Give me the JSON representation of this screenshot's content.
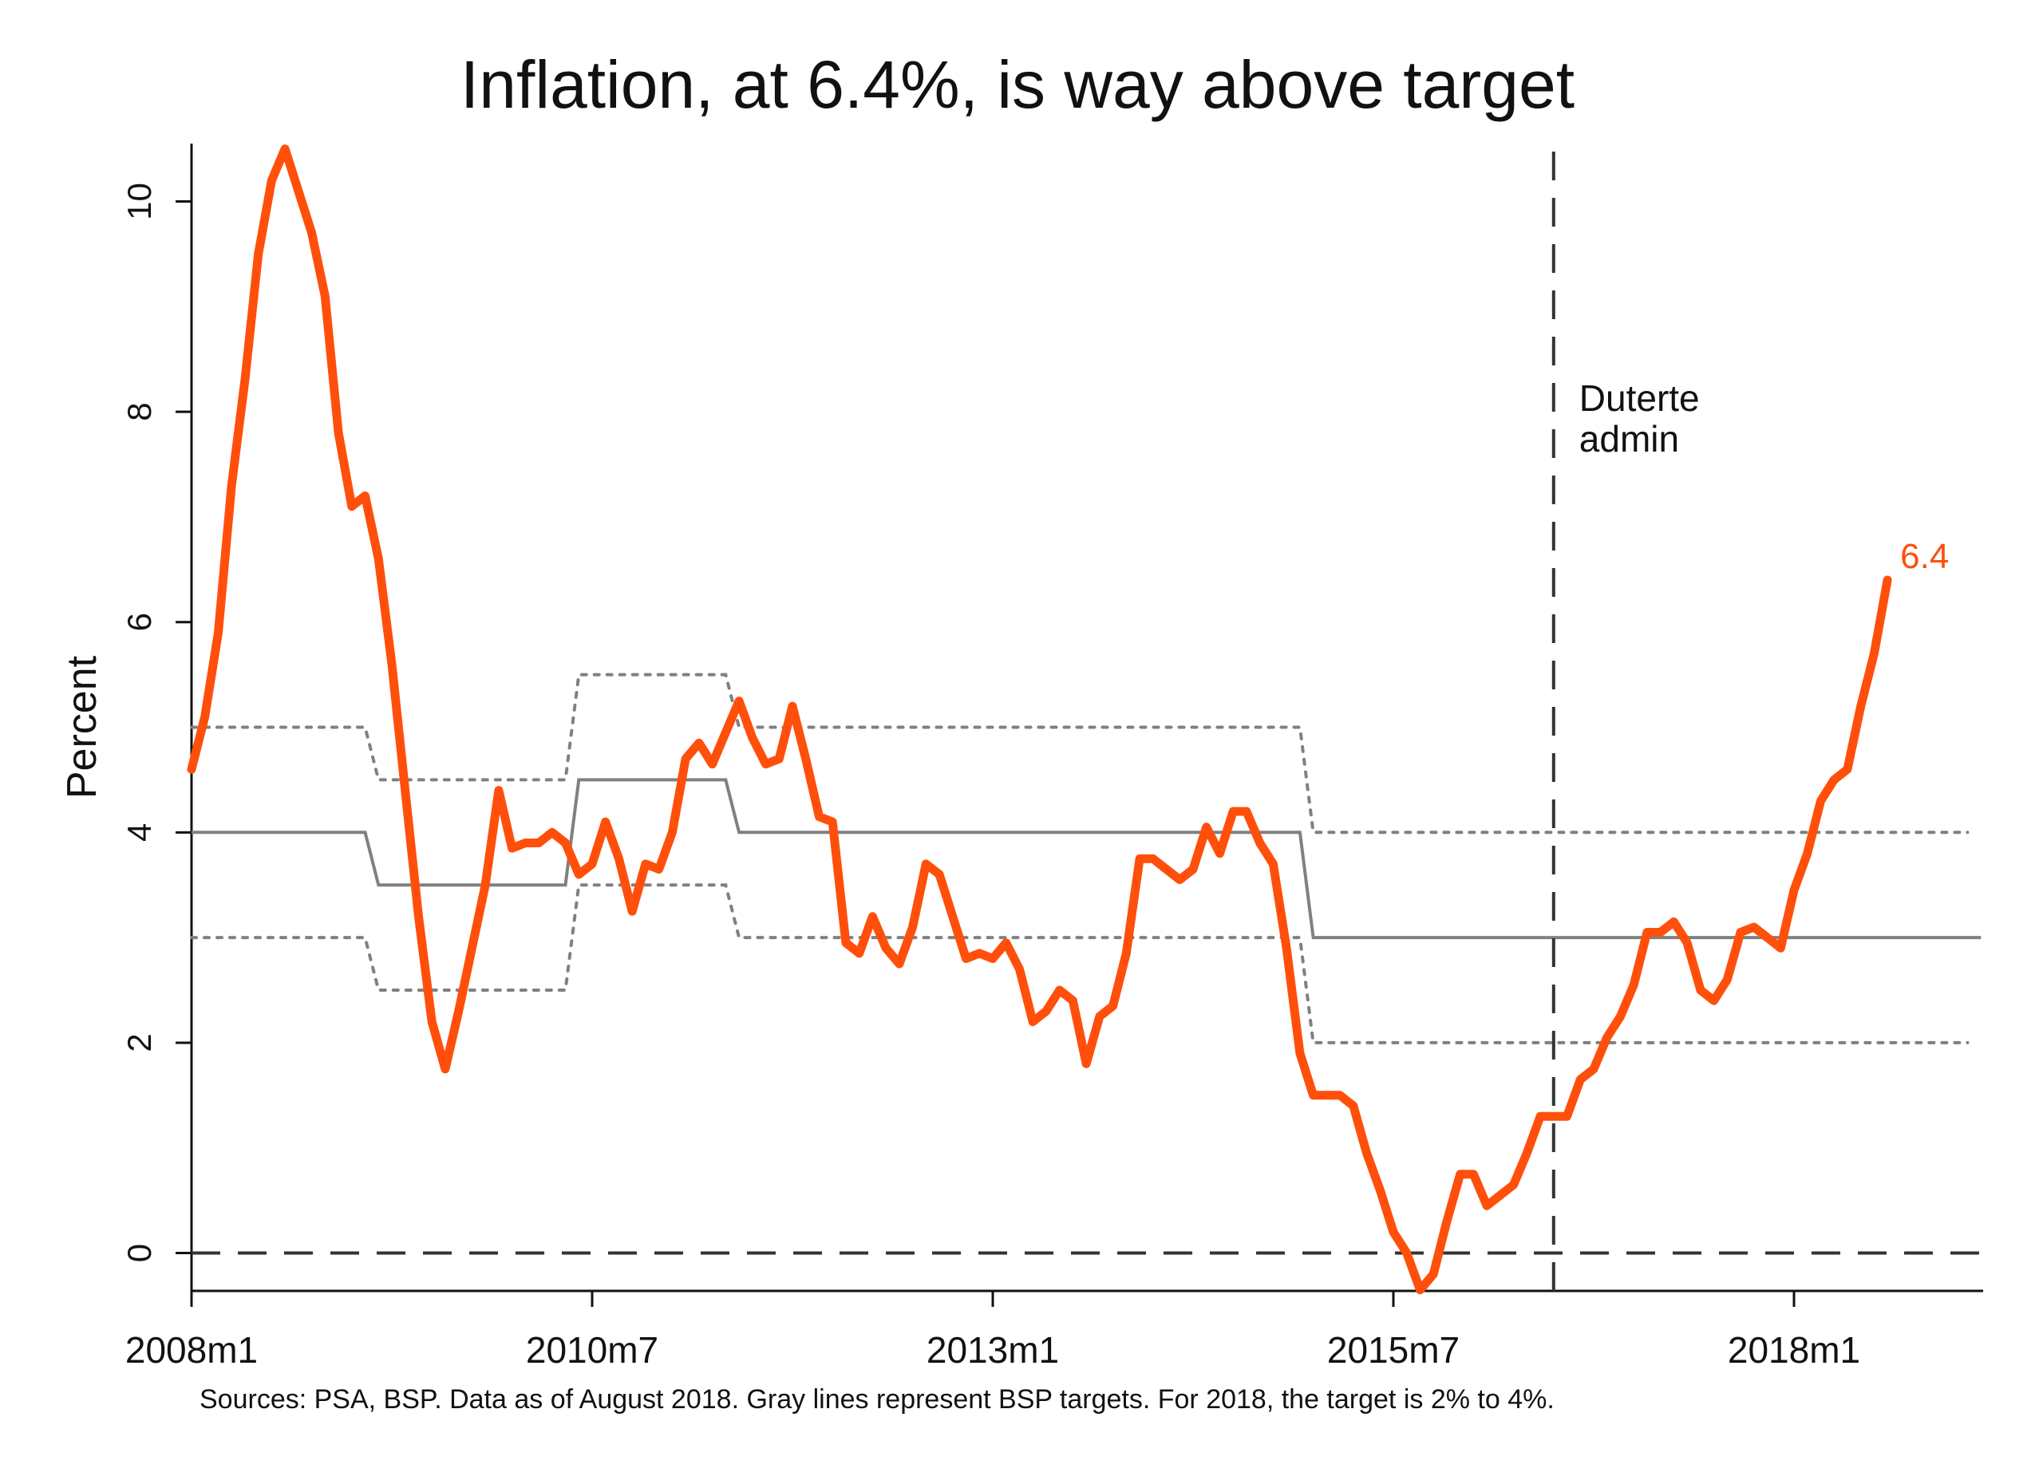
{
  "chart_data": {
    "type": "line",
    "title": "Inflation, at 6.4%, is way above target",
    "ylabel": "Percent",
    "xlabel": "",
    "ylim": [
      -0.36,
      10.55
    ],
    "xlim": [
      "2008m1",
      "2019m3"
    ],
    "x_ticks": [
      "2008m1",
      "2010m7",
      "2013m1",
      "2015m7",
      "2018m1"
    ],
    "y_ticks": [
      0,
      2,
      4,
      6,
      8,
      10
    ],
    "grid": false,
    "legend": "none",
    "annotations": [
      {
        "text": "Duterte",
        "x": "2016m7"
      },
      {
        "text": "admin",
        "x": "2016m7"
      },
      {
        "text": "6.4",
        "x": "2018m8"
      }
    ],
    "reference_lines": [
      {
        "kind": "horizontal-dashed",
        "y": 0
      },
      {
        "kind": "vertical-dashed",
        "x": "2016m7"
      }
    ],
    "series": [
      {
        "role": "inflation",
        "color": "#ff4f0b",
        "style": "solid",
        "start": "2008m1",
        "values": [
          4.6,
          5.1,
          5.9,
          7.3,
          8.3,
          9.5,
          10.2,
          10.5,
          10.1,
          9.7,
          9.1,
          7.8,
          7.1,
          7.2,
          6.6,
          5.6,
          4.4,
          3.2,
          2.2,
          1.75,
          2.3,
          2.9,
          3.5,
          4.4,
          3.85,
          3.9,
          3.9,
          4.0,
          3.9,
          3.6,
          3.7,
          4.1,
          3.75,
          3.25,
          3.7,
          3.65,
          4.0,
          4.7,
          4.85,
          4.65,
          4.95,
          5.25,
          4.9,
          4.65,
          4.7,
          5.2,
          4.7,
          4.15,
          4.1,
          2.95,
          2.85,
          3.2,
          2.9,
          2.75,
          3.1,
          3.7,
          3.6,
          3.2,
          2.8,
          2.85,
          2.8,
          2.95,
          2.7,
          2.2,
          2.3,
          2.5,
          2.4,
          1.8,
          2.25,
          2.35,
          2.85,
          3.75,
          3.75,
          3.65,
          3.55,
          3.65,
          4.05,
          3.8,
          4.2,
          4.2,
          3.9,
          3.7,
          2.9,
          1.9,
          1.5,
          1.5,
          1.5,
          1.4,
          0.95,
          0.6,
          0.2,
          0.0,
          -0.35,
          -0.2,
          0.3,
          0.75,
          0.75,
          0.45,
          0.55,
          0.65,
          0.95,
          1.3,
          1.3,
          1.3,
          1.65,
          1.75,
          2.05,
          2.25,
          2.55,
          3.05,
          3.05,
          3.15,
          2.95,
          2.5,
          2.4,
          2.6,
          3.05,
          3.1,
          3.0,
          2.9,
          3.45,
          3.8,
          4.3,
          4.5,
          4.6,
          5.2,
          5.7,
          6.4
        ]
      },
      {
        "role": "target",
        "color": "#808080",
        "style": "solid",
        "points": [
          [
            "2008m1",
            4
          ],
          [
            "2009m2",
            4
          ],
          [
            "2009m3",
            3.5
          ],
          [
            "2010m5",
            3.5
          ],
          [
            "2010m6",
            4.5
          ],
          [
            "2011m5",
            4.5
          ],
          [
            "2011m6",
            4
          ],
          [
            "2014m12",
            4
          ],
          [
            "2015m1",
            3
          ],
          [
            "2019m3",
            3
          ]
        ]
      },
      {
        "role": "target-upper",
        "color": "#808080",
        "style": "dotted",
        "points": [
          [
            "2008m1",
            5
          ],
          [
            "2009m2",
            5
          ],
          [
            "2009m3",
            4.5
          ],
          [
            "2010m5",
            4.5
          ],
          [
            "2010m6",
            5.5
          ],
          [
            "2011m5",
            5.5
          ],
          [
            "2011m6",
            5
          ],
          [
            "2014m12",
            5
          ],
          [
            "2015m1",
            4
          ],
          [
            "2019m2",
            4
          ]
        ]
      },
      {
        "role": "target-lower",
        "color": "#808080",
        "style": "dotted",
        "points": [
          [
            "2008m1",
            3
          ],
          [
            "2009m2",
            3
          ],
          [
            "2009m3",
            2.5
          ],
          [
            "2010m5",
            2.5
          ],
          [
            "2010m6",
            3.5
          ],
          [
            "2011m5",
            3.5
          ],
          [
            "2011m6",
            3
          ],
          [
            "2014m12",
            3
          ],
          [
            "2015m1",
            2
          ],
          [
            "2019m2",
            2
          ]
        ]
      }
    ]
  },
  "source_note": "Sources: PSA, BSP. Data as of August 2018. Gray lines represent BSP targets. For 2018, the target is 2% to 4%."
}
